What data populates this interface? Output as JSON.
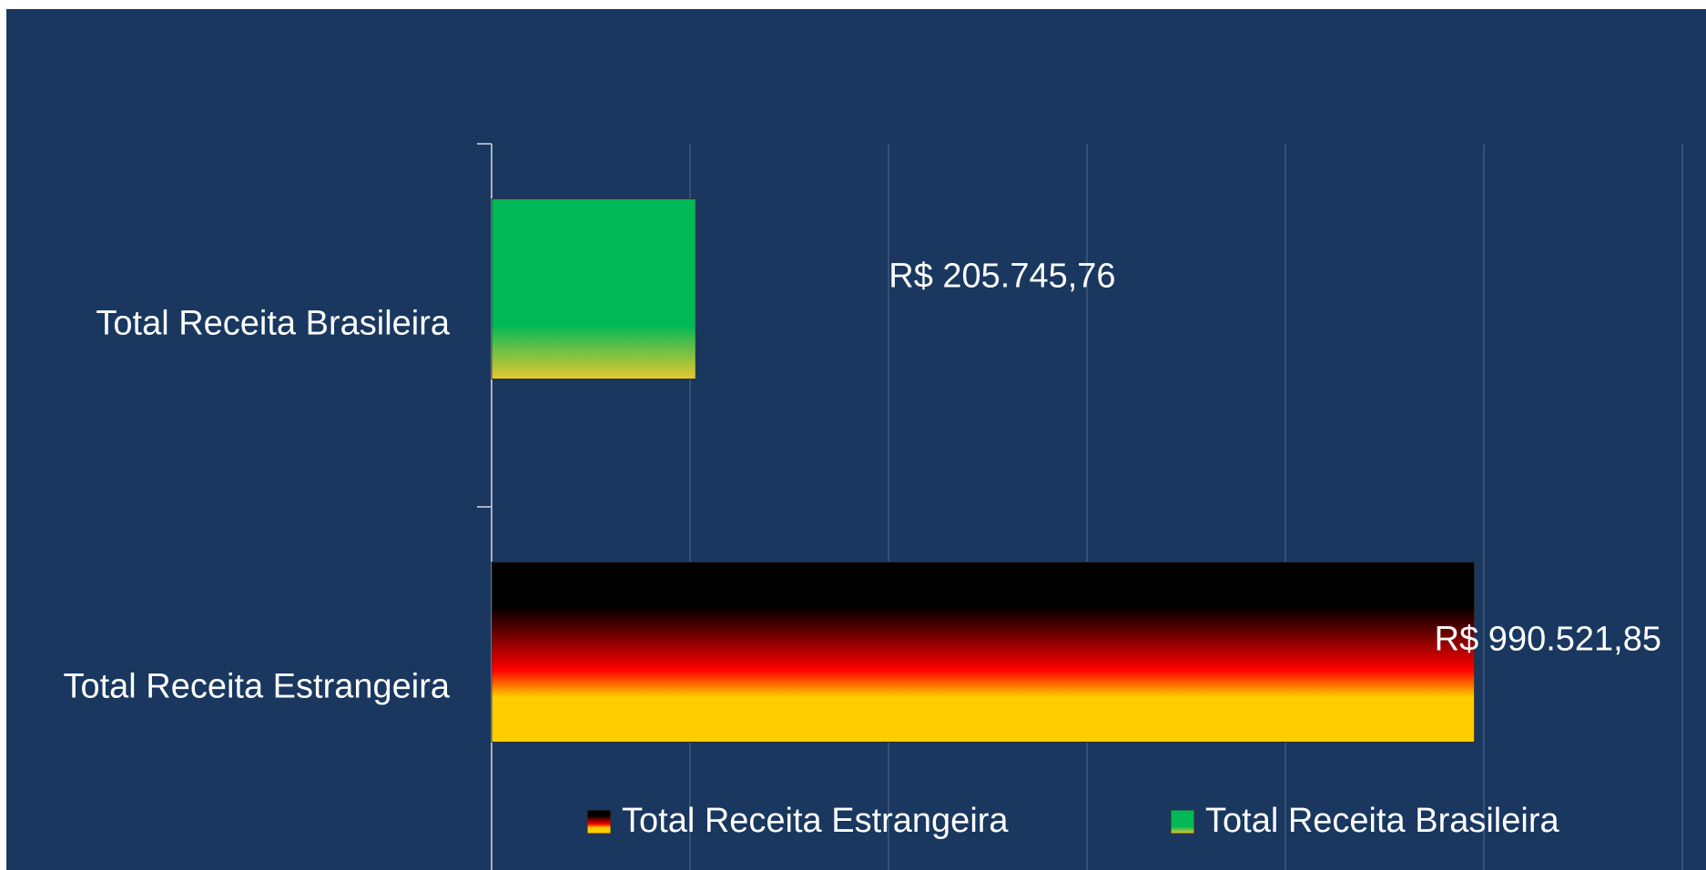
{
  "chart_data": {
    "type": "bar",
    "orientation": "horizontal",
    "categories": [
      "Total Receita Estrangeira",
      "Total Receita Brasileira"
    ],
    "series": [
      {
        "name": "Total Receita Estrangeira",
        "color": [
          "#000000",
          "#ff0000",
          "#ffcc00"
        ],
        "values": [
          990521.85,
          null
        ],
        "value_labels": [
          "R$ 990.521,85",
          null
        ]
      },
      {
        "name": "Total Receita Brasileira",
        "color": [
          "#00b857",
          "#00b857",
          "#e8c830"
        ],
        "values": [
          null,
          205745.76
        ],
        "value_labels": [
          null,
          "R$ 205.745,76"
        ]
      }
    ],
    "xlim": [
      0,
      1200000
    ],
    "xticks": [
      0,
      200000,
      400000,
      600000,
      800000,
      1000000,
      1200000
    ],
    "grid": true,
    "legend": "bottom"
  }
}
